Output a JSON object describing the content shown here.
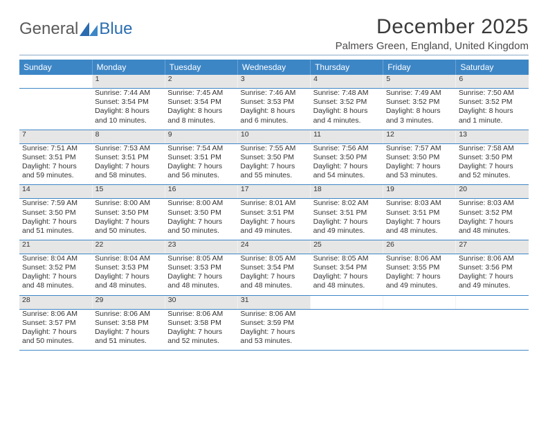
{
  "brand": {
    "general": "General",
    "blue": "Blue"
  },
  "title": "December 2025",
  "location": "Palmers Green, England, United Kingdom",
  "colors": {
    "header_bg": "#3d86c6",
    "header_text": "#ffffff",
    "daynum_bg": "#e6e6e6",
    "daynum_text": "#555555",
    "row_divider": "#3d86c6",
    "body_text": "#333333",
    "logo_gray": "#5a5a5a",
    "logo_blue": "#2a6db0",
    "title_underline": "#8aa8c8"
  },
  "day_headers": [
    "Sunday",
    "Monday",
    "Tuesday",
    "Wednesday",
    "Thursday",
    "Friday",
    "Saturday"
  ],
  "weeks": [
    [
      {
        "day": "",
        "sunrise": "",
        "sunset": "",
        "daylight": ""
      },
      {
        "day": "1",
        "sunrise": "Sunrise: 7:44 AM",
        "sunset": "Sunset: 3:54 PM",
        "daylight": "Daylight: 8 hours and 10 minutes."
      },
      {
        "day": "2",
        "sunrise": "Sunrise: 7:45 AM",
        "sunset": "Sunset: 3:54 PM",
        "daylight": "Daylight: 8 hours and 8 minutes."
      },
      {
        "day": "3",
        "sunrise": "Sunrise: 7:46 AM",
        "sunset": "Sunset: 3:53 PM",
        "daylight": "Daylight: 8 hours and 6 minutes."
      },
      {
        "day": "4",
        "sunrise": "Sunrise: 7:48 AM",
        "sunset": "Sunset: 3:52 PM",
        "daylight": "Daylight: 8 hours and 4 minutes."
      },
      {
        "day": "5",
        "sunrise": "Sunrise: 7:49 AM",
        "sunset": "Sunset: 3:52 PM",
        "daylight": "Daylight: 8 hours and 3 minutes."
      },
      {
        "day": "6",
        "sunrise": "Sunrise: 7:50 AM",
        "sunset": "Sunset: 3:52 PM",
        "daylight": "Daylight: 8 hours and 1 minute."
      }
    ],
    [
      {
        "day": "7",
        "sunrise": "Sunrise: 7:51 AM",
        "sunset": "Sunset: 3:51 PM",
        "daylight": "Daylight: 7 hours and 59 minutes."
      },
      {
        "day": "8",
        "sunrise": "Sunrise: 7:53 AM",
        "sunset": "Sunset: 3:51 PM",
        "daylight": "Daylight: 7 hours and 58 minutes."
      },
      {
        "day": "9",
        "sunrise": "Sunrise: 7:54 AM",
        "sunset": "Sunset: 3:51 PM",
        "daylight": "Daylight: 7 hours and 56 minutes."
      },
      {
        "day": "10",
        "sunrise": "Sunrise: 7:55 AM",
        "sunset": "Sunset: 3:50 PM",
        "daylight": "Daylight: 7 hours and 55 minutes."
      },
      {
        "day": "11",
        "sunrise": "Sunrise: 7:56 AM",
        "sunset": "Sunset: 3:50 PM",
        "daylight": "Daylight: 7 hours and 54 minutes."
      },
      {
        "day": "12",
        "sunrise": "Sunrise: 7:57 AM",
        "sunset": "Sunset: 3:50 PM",
        "daylight": "Daylight: 7 hours and 53 minutes."
      },
      {
        "day": "13",
        "sunrise": "Sunrise: 7:58 AM",
        "sunset": "Sunset: 3:50 PM",
        "daylight": "Daylight: 7 hours and 52 minutes."
      }
    ],
    [
      {
        "day": "14",
        "sunrise": "Sunrise: 7:59 AM",
        "sunset": "Sunset: 3:50 PM",
        "daylight": "Daylight: 7 hours and 51 minutes."
      },
      {
        "day": "15",
        "sunrise": "Sunrise: 8:00 AM",
        "sunset": "Sunset: 3:50 PM",
        "daylight": "Daylight: 7 hours and 50 minutes."
      },
      {
        "day": "16",
        "sunrise": "Sunrise: 8:00 AM",
        "sunset": "Sunset: 3:50 PM",
        "daylight": "Daylight: 7 hours and 50 minutes."
      },
      {
        "day": "17",
        "sunrise": "Sunrise: 8:01 AM",
        "sunset": "Sunset: 3:51 PM",
        "daylight": "Daylight: 7 hours and 49 minutes."
      },
      {
        "day": "18",
        "sunrise": "Sunrise: 8:02 AM",
        "sunset": "Sunset: 3:51 PM",
        "daylight": "Daylight: 7 hours and 49 minutes."
      },
      {
        "day": "19",
        "sunrise": "Sunrise: 8:03 AM",
        "sunset": "Sunset: 3:51 PM",
        "daylight": "Daylight: 7 hours and 48 minutes."
      },
      {
        "day": "20",
        "sunrise": "Sunrise: 8:03 AM",
        "sunset": "Sunset: 3:52 PM",
        "daylight": "Daylight: 7 hours and 48 minutes."
      }
    ],
    [
      {
        "day": "21",
        "sunrise": "Sunrise: 8:04 AM",
        "sunset": "Sunset: 3:52 PM",
        "daylight": "Daylight: 7 hours and 48 minutes."
      },
      {
        "day": "22",
        "sunrise": "Sunrise: 8:04 AM",
        "sunset": "Sunset: 3:53 PM",
        "daylight": "Daylight: 7 hours and 48 minutes."
      },
      {
        "day": "23",
        "sunrise": "Sunrise: 8:05 AM",
        "sunset": "Sunset: 3:53 PM",
        "daylight": "Daylight: 7 hours and 48 minutes."
      },
      {
        "day": "24",
        "sunrise": "Sunrise: 8:05 AM",
        "sunset": "Sunset: 3:54 PM",
        "daylight": "Daylight: 7 hours and 48 minutes."
      },
      {
        "day": "25",
        "sunrise": "Sunrise: 8:05 AM",
        "sunset": "Sunset: 3:54 PM",
        "daylight": "Daylight: 7 hours and 48 minutes."
      },
      {
        "day": "26",
        "sunrise": "Sunrise: 8:06 AM",
        "sunset": "Sunset: 3:55 PM",
        "daylight": "Daylight: 7 hours and 49 minutes."
      },
      {
        "day": "27",
        "sunrise": "Sunrise: 8:06 AM",
        "sunset": "Sunset: 3:56 PM",
        "daylight": "Daylight: 7 hours and 49 minutes."
      }
    ],
    [
      {
        "day": "28",
        "sunrise": "Sunrise: 8:06 AM",
        "sunset": "Sunset: 3:57 PM",
        "daylight": "Daylight: 7 hours and 50 minutes."
      },
      {
        "day": "29",
        "sunrise": "Sunrise: 8:06 AM",
        "sunset": "Sunset: 3:58 PM",
        "daylight": "Daylight: 7 hours and 51 minutes."
      },
      {
        "day": "30",
        "sunrise": "Sunrise: 8:06 AM",
        "sunset": "Sunset: 3:58 PM",
        "daylight": "Daylight: 7 hours and 52 minutes."
      },
      {
        "day": "31",
        "sunrise": "Sunrise: 8:06 AM",
        "sunset": "Sunset: 3:59 PM",
        "daylight": "Daylight: 7 hours and 53 minutes."
      },
      {
        "day": "",
        "sunrise": "",
        "sunset": "",
        "daylight": ""
      },
      {
        "day": "",
        "sunrise": "",
        "sunset": "",
        "daylight": ""
      },
      {
        "day": "",
        "sunrise": "",
        "sunset": "",
        "daylight": ""
      }
    ]
  ]
}
